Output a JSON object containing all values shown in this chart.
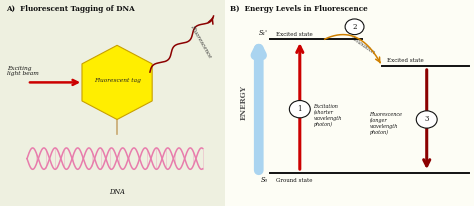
{
  "bg_color_a": "#eef0e0",
  "title_A": "A)  Fluorescent Tagging of DNA",
  "title_B": "B)  Energy Levels in Fluorescence",
  "title_fontsize": 5.2,
  "title_style": "normal",
  "hex_color": "#ffee00",
  "hex_edge_color": "#c8a000",
  "hex_label": "Fluorescent tag",
  "excitation_label": "Exciting\nlight beam",
  "fluorescence_label": "Fluorescence",
  "dna_label": "DNA",
  "arrow_red": "#cc0000",
  "arrow_dark_red": "#8b0000",
  "energy_label": "ENERGY",
  "energy_arrow_color": "#aad4f0",
  "s1_label": "S₁'",
  "s0_label": "S₀",
  "excited_state_left": "Excited state",
  "ground_state_label": "Ground state",
  "excited_state_right": "Excited state",
  "excitation_text": "Excitation\n(shorter\nwavelength\nphoton)",
  "fluorescence_text": "Fluorescence\n(longer\nwavelength\nphoton)",
  "relaxation_label": "Relaxation",
  "circle1": "1",
  "circle2": "2",
  "circle3": "3",
  "orange_color": "#d08000",
  "line_color": "#111111",
  "dna_color": "#e87cac",
  "stem_color": "#c8a870",
  "panel_split": 0.475
}
